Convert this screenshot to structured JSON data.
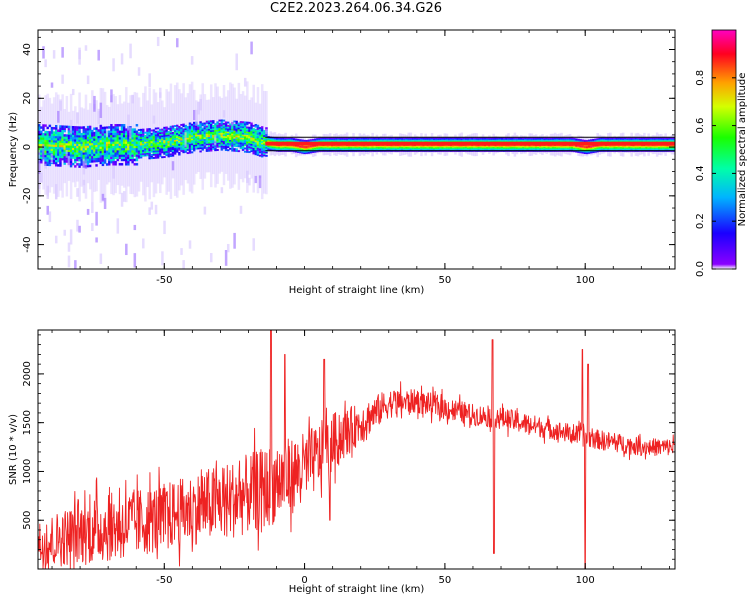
{
  "title": "C2E2.2023.264.06.34.G26",
  "colors": {
    "snr_line": "#ee2222",
    "carrier_band": "#ff1a1a",
    "axis": "#000000"
  },
  "chart_data": [
    {
      "type": "heatmap",
      "name": "spectrogram",
      "xlabel": "Height of straight line (km)",
      "ylabel": "Frequency (Hz)",
      "xlim": [
        -95,
        132
      ],
      "ylim": [
        -50,
        48
      ],
      "xticks": [
        -50,
        50,
        100
      ],
      "yticks": [
        -40,
        -20,
        0,
        20,
        40
      ],
      "colorbar": {
        "label": "Normalized spectral amplitude",
        "range": [
          0.0,
          1.0
        ],
        "ticks": [
          "0.0",
          "0.2",
          "0.4",
          "0.6",
          "0.8"
        ],
        "tick_values": [
          0.0,
          0.2,
          0.4,
          0.6,
          0.8
        ],
        "colormap": "gist_rainbow (white at zero)"
      },
      "ridge": {
        "x": [
          -95,
          -80,
          -70,
          -60,
          -50,
          -40,
          -30,
          -20,
          -15,
          -10,
          -5,
          0,
          5,
          10,
          30,
          50,
          65,
          80,
          95,
          100,
          105,
          132
        ],
        "frequency_hz": [
          1,
          0,
          1,
          1,
          2,
          4,
          5,
          4,
          2,
          1,
          1,
          0,
          1,
          1,
          1,
          1,
          1,
          1,
          1,
          0,
          1,
          1
        ]
      }
    },
    {
      "type": "line",
      "name": "snr",
      "xlabel": "Height of straight line (km)",
      "ylabel": "SNR (10 * v/v)",
      "xlim": [
        -95,
        132
      ],
      "ylim": [
        0,
        2450
      ],
      "xticks": [
        -50,
        0,
        50,
        100
      ],
      "yticks": [
        500,
        1000,
        1500,
        2000
      ],
      "series": [
        {
          "envelope_x": [
            -95,
            -85,
            -75,
            -65,
            -55,
            -45,
            -35,
            -25,
            -15,
            -5,
            0,
            5,
            10,
            20,
            30,
            40,
            50,
            60,
            70,
            80,
            90,
            100,
            110,
            120,
            132
          ],
          "envelope_mean": [
            250,
            330,
            400,
            450,
            500,
            570,
            650,
            720,
            820,
            950,
            1050,
            1150,
            1300,
            1500,
            1700,
            1720,
            1650,
            1580,
            1550,
            1480,
            1420,
            1350,
            1300,
            1250,
            1250
          ],
          "envelope_spread": [
            250,
            300,
            350,
            350,
            350,
            350,
            380,
            400,
            420,
            400,
            350,
            350,
            300,
            200,
            150,
            120,
            120,
            110,
            110,
            110,
            100,
            100,
            100,
            90,
            90
          ],
          "spikes": [
            {
              "x": -12,
              "y": 2450
            },
            {
              "x": -7,
              "y": 2200
            },
            {
              "x": 7,
              "y": 2150
            },
            {
              "x": 9,
              "y": 500
            },
            {
              "x": 67,
              "y": 2350
            },
            {
              "x": 67.5,
              "y": 160
            },
            {
              "x": 99,
              "y": 2250
            },
            {
              "x": 100,
              "y": 0
            },
            {
              "x": 101,
              "y": 2100
            }
          ]
        }
      ]
    }
  ]
}
